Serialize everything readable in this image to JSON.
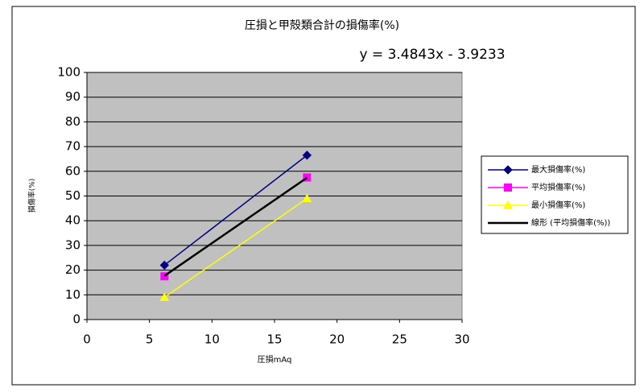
{
  "chart_data": {
    "type": "scatter",
    "title": "圧損と甲殻類合計の損傷率(%)",
    "annotation": "y = 3.4843x - 3.9233",
    "x_label": "圧損mAq",
    "y_label": "損傷率(%)",
    "xlim": [
      0,
      30
    ],
    "xticks": [
      0,
      5,
      10,
      15,
      20,
      25,
      30
    ],
    "ylim": [
      0,
      100
    ],
    "yticks": [
      0,
      10,
      20,
      30,
      40,
      50,
      60,
      70,
      80,
      90,
      100
    ],
    "grid": true,
    "legend": "right",
    "series": [
      {
        "name": "最大損傷率(%)",
        "color": "#000080",
        "marker": "diamond",
        "x": [
          6.2,
          17.6
        ],
        "values": [
          22,
          66.5
        ]
      },
      {
        "name": "平均損傷率(%)",
        "color": "#ff00ff",
        "marker": "square",
        "x": [
          6.2,
          17.6
        ],
        "values": [
          17.5,
          57.5
        ]
      },
      {
        "name": "最小損傷率(%)",
        "color": "#ffff00",
        "marker": "triangle",
        "x": [
          6.2,
          17.6
        ],
        "values": [
          9,
          49
        ]
      },
      {
        "name": "線形 (平均損傷率(%))",
        "color": "#000000",
        "marker": "none",
        "x": [
          6.2,
          17.6
        ],
        "values": [
          17.7,
          57.4
        ]
      }
    ]
  }
}
